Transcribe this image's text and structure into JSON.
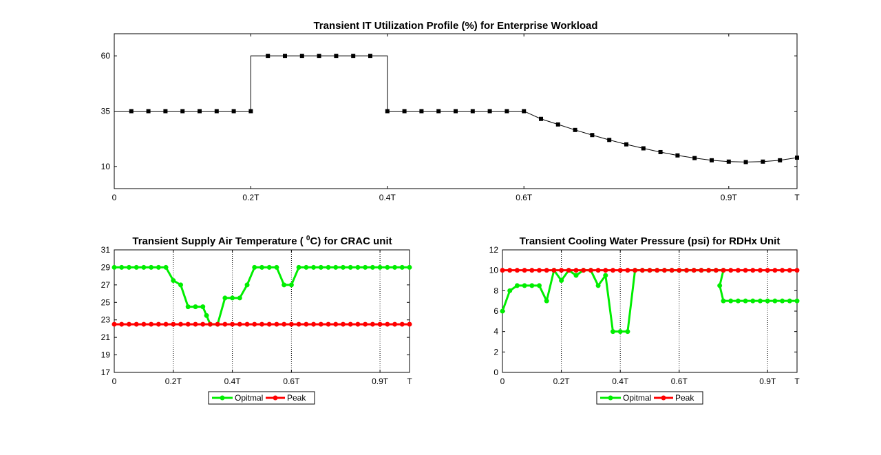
{
  "chart_data": [
    {
      "type": "line",
      "title": "Transient IT Utilization Profile (%) for Enterprise Workload",
      "xlim": [
        0,
        1
      ],
      "ylim": [
        0,
        70
      ],
      "x_ticks": [
        0,
        0.2,
        0.4,
        0.6,
        0.9,
        1.0
      ],
      "x_tick_labels": [
        "0",
        "0.2T",
        "0.4T",
        "0.6T",
        "0.9T",
        "T"
      ],
      "y_ticks": [
        10,
        35,
        60
      ],
      "y_tick_labels": [
        "10",
        "35",
        "60"
      ],
      "grid": false,
      "series": [
        {
          "color": "#000000",
          "marker": "square",
          "step_line": [
            [
              0,
              35
            ],
            [
              0.2,
              35
            ],
            [
              0.2,
              60
            ],
            [
              0.4,
              60
            ],
            [
              0.4,
              35
            ],
            [
              0.6,
              35
            ]
          ],
          "curve": [
            [
              0.6,
              35
            ],
            [
              0.625,
              31.5
            ],
            [
              0.65,
              29.0
            ],
            [
              0.675,
              26.5
            ],
            [
              0.7,
              24.2
            ],
            [
              0.725,
              22.0
            ],
            [
              0.75,
              20.0
            ],
            [
              0.775,
              18.2
            ],
            [
              0.8,
              16.5
            ],
            [
              0.825,
              15.0
            ],
            [
              0.85,
              13.8
            ],
            [
              0.875,
              12.8
            ],
            [
              0.9,
              12.2
            ],
            [
              0.925,
              12.0
            ],
            [
              0.95,
              12.2
            ],
            [
              0.975,
              12.8
            ],
            [
              1.0,
              14.0
            ]
          ],
          "points": [
            [
              0.025,
              35
            ],
            [
              0.05,
              35
            ],
            [
              0.075,
              35
            ],
            [
              0.1,
              35
            ],
            [
              0.125,
              35
            ],
            [
              0.15,
              35
            ],
            [
              0.175,
              35
            ],
            [
              0.2,
              35
            ],
            [
              0.225,
              60
            ],
            [
              0.25,
              60
            ],
            [
              0.275,
              60
            ],
            [
              0.3,
              60
            ],
            [
              0.325,
              60
            ],
            [
              0.35,
              60
            ],
            [
              0.375,
              60
            ],
            [
              0.4,
              35
            ],
            [
              0.425,
              35
            ],
            [
              0.45,
              35
            ],
            [
              0.475,
              35
            ],
            [
              0.5,
              35
            ],
            [
              0.525,
              35
            ],
            [
              0.55,
              35
            ],
            [
              0.575,
              35
            ],
            [
              0.6,
              35
            ],
            [
              0.625,
              31.5
            ],
            [
              0.65,
              29.0
            ],
            [
              0.675,
              26.5
            ],
            [
              0.7,
              24.2
            ],
            [
              0.725,
              22.0
            ],
            [
              0.75,
              20.0
            ],
            [
              0.775,
              18.2
            ],
            [
              0.8,
              16.5
            ],
            [
              0.825,
              15.0
            ],
            [
              0.85,
              13.8
            ],
            [
              0.875,
              12.8
            ],
            [
              0.9,
              12.2
            ],
            [
              0.925,
              12.0
            ],
            [
              0.95,
              12.2
            ],
            [
              0.975,
              12.8
            ],
            [
              1.0,
              14.0
            ]
          ]
        }
      ]
    },
    {
      "type": "line",
      "title_main": "Transient Supply Air Temperature ( ",
      "title_sup": "0",
      "title_end": "C) for CRAC unit",
      "xlim": [
        0,
        1
      ],
      "ylim": [
        17,
        31
      ],
      "x_ticks": [
        0,
        0.2,
        0.4,
        0.6,
        0.9,
        1.0
      ],
      "x_tick_labels": [
        "0",
        "0.2T",
        "0.4T",
        "0.6T",
        "0.9T",
        "T"
      ],
      "y_ticks": [
        17,
        19,
        21,
        23,
        25,
        27,
        29,
        31
      ],
      "y_tick_labels": [
        "17",
        "19",
        "21",
        "23",
        "25",
        "27",
        "29",
        "31"
      ],
      "grid_x_dotted": [
        0.2,
        0.4,
        0.6,
        0.9
      ],
      "legend": {
        "placement": "bottom-center",
        "entries": [
          "Opitmal",
          "Peak"
        ]
      },
      "series": [
        {
          "name": "Opitmal",
          "color": "#00ee00",
          "x": [
            0,
            0.025,
            0.05,
            0.075,
            0.1,
            0.125,
            0.15,
            0.175,
            0.2,
            0.225,
            0.25,
            0.275,
            0.3,
            0.3125,
            0.325,
            0.35,
            0.375,
            0.4,
            0.425,
            0.45,
            0.475,
            0.5,
            0.525,
            0.55,
            0.575,
            0.6,
            0.625,
            0.65,
            0.675,
            0.7,
            0.725,
            0.75,
            0.775,
            0.8,
            0.825,
            0.85,
            0.875,
            0.9,
            0.925,
            0.95,
            0.975,
            1.0
          ],
          "values": [
            29,
            29,
            29,
            29,
            29,
            29,
            29,
            29,
            27.5,
            27,
            24.5,
            24.5,
            24.5,
            23.5,
            22.5,
            22.5,
            25.5,
            25.5,
            25.5,
            27,
            29,
            29,
            29,
            29,
            27,
            27,
            29,
            29,
            29,
            29,
            29,
            29,
            29,
            29,
            29,
            29,
            29,
            29,
            29,
            29,
            29,
            29
          ]
        },
        {
          "name": "Peak",
          "color": "#ff0000",
          "x": [
            0,
            0.025,
            0.05,
            0.075,
            0.1,
            0.125,
            0.15,
            0.175,
            0.2,
            0.225,
            0.25,
            0.275,
            0.3,
            0.325,
            0.35,
            0.375,
            0.4,
            0.425,
            0.45,
            0.475,
            0.5,
            0.525,
            0.55,
            0.575,
            0.6,
            0.625,
            0.65,
            0.675,
            0.7,
            0.725,
            0.75,
            0.775,
            0.8,
            0.825,
            0.85,
            0.875,
            0.9,
            0.925,
            0.95,
            0.975,
            1.0
          ],
          "values": [
            22.5,
            22.5,
            22.5,
            22.5,
            22.5,
            22.5,
            22.5,
            22.5,
            22.5,
            22.5,
            22.5,
            22.5,
            22.5,
            22.5,
            22.5,
            22.5,
            22.5,
            22.5,
            22.5,
            22.5,
            22.5,
            22.5,
            22.5,
            22.5,
            22.5,
            22.5,
            22.5,
            22.5,
            22.5,
            22.5,
            22.5,
            22.5,
            22.5,
            22.5,
            22.5,
            22.5,
            22.5,
            22.5,
            22.5,
            22.5,
            22.5
          ]
        }
      ]
    },
    {
      "type": "line",
      "title": "Transient Cooling Water Pressure (psi) for RDHx Unit",
      "xlim": [
        0,
        1
      ],
      "ylim": [
        0,
        12
      ],
      "x_ticks": [
        0,
        0.2,
        0.4,
        0.6,
        0.9,
        1.0
      ],
      "x_tick_labels": [
        "0",
        "0.2T",
        "0.4T",
        "0.6T",
        "0.9T",
        "T"
      ],
      "y_ticks": [
        0,
        2,
        4,
        6,
        8,
        10,
        12
      ],
      "y_tick_labels": [
        "0",
        "2",
        "4",
        "6",
        "8",
        "10",
        "12"
      ],
      "grid_x_dotted": [
        0.2,
        0.4,
        0.6,
        0.9
      ],
      "legend": {
        "placement": "bottom-center",
        "entries": [
          "Opitmal",
          "Peak"
        ]
      },
      "series": [
        {
          "name": "Opitmal",
          "color": "#00ee00",
          "x": [
            0,
            0.025,
            0.05,
            0.075,
            0.1,
            0.125,
            0.15,
            0.175,
            0.2,
            0.225,
            0.25,
            0.275,
            0.3,
            0.325,
            0.35,
            0.375,
            0.4,
            0.425,
            0.45,
            0.475,
            0.5,
            0.525,
            0.55,
            0.575,
            0.6,
            0.625,
            0.65,
            0.675,
            0.7,
            0.725,
            0.75,
            0.7375,
            0.75,
            0.775,
            0.8,
            0.825,
            0.85,
            0.875,
            0.9,
            0.925,
            0.95,
            0.975,
            1.0
          ],
          "values": [
            6,
            8,
            8.5,
            8.5,
            8.5,
            8.5,
            7,
            10,
            9,
            10,
            9.5,
            10,
            10,
            8.5,
            9.5,
            4,
            4,
            4,
            10,
            10,
            10,
            10,
            10,
            10,
            10,
            10,
            10,
            10,
            10,
            10,
            10,
            8.5,
            7,
            7,
            7,
            7,
            7,
            7,
            7,
            7,
            7,
            7,
            7
          ]
        },
        {
          "name": "Peak",
          "color": "#ff0000",
          "x": [
            0,
            0.025,
            0.05,
            0.075,
            0.1,
            0.125,
            0.15,
            0.175,
            0.2,
            0.225,
            0.25,
            0.275,
            0.3,
            0.325,
            0.35,
            0.375,
            0.4,
            0.425,
            0.45,
            0.475,
            0.5,
            0.525,
            0.55,
            0.575,
            0.6,
            0.625,
            0.65,
            0.675,
            0.7,
            0.725,
            0.75,
            0.775,
            0.8,
            0.825,
            0.85,
            0.875,
            0.9,
            0.925,
            0.95,
            0.975,
            1.0
          ],
          "values": [
            10,
            10,
            10,
            10,
            10,
            10,
            10,
            10,
            10,
            10,
            10,
            10,
            10,
            10,
            10,
            10,
            10,
            10,
            10,
            10,
            10,
            10,
            10,
            10,
            10,
            10,
            10,
            10,
            10,
            10,
            10,
            10,
            10,
            10,
            10,
            10,
            10,
            10,
            10,
            10,
            10
          ]
        }
      ]
    }
  ]
}
